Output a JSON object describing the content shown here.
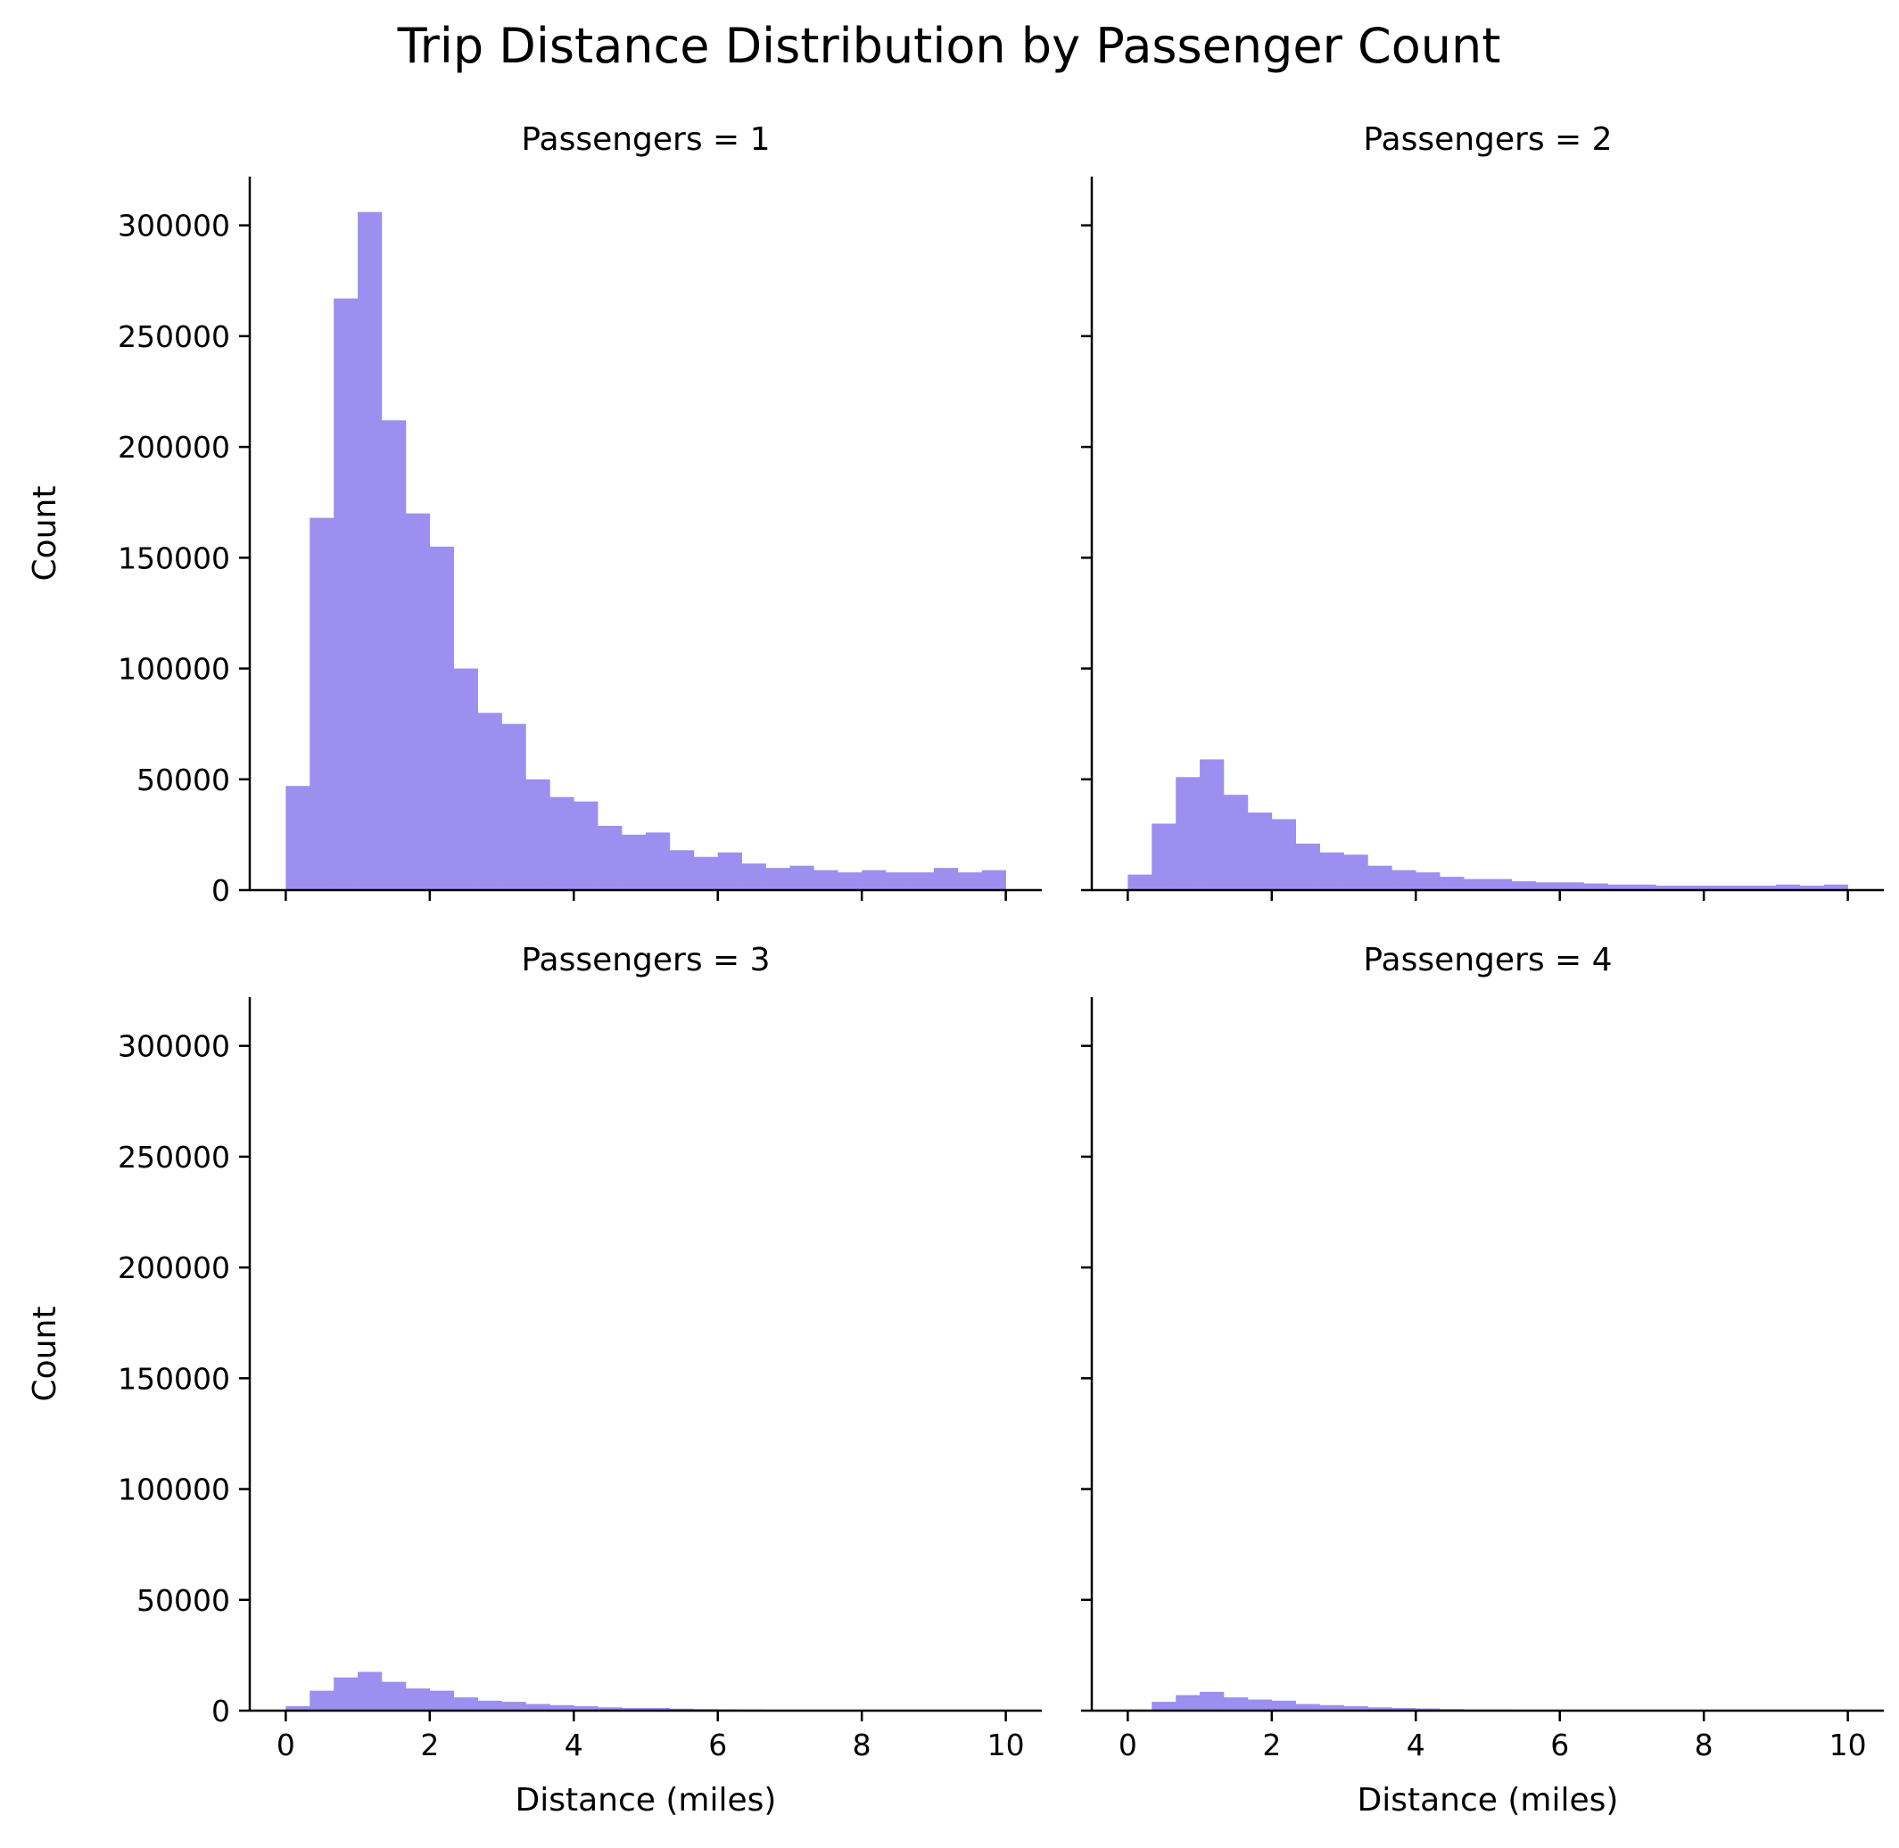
{
  "title": "Trip Distance Distribution by Passenger Count",
  "colors": {
    "title": "#00008B",
    "bar": "#9C8FF0",
    "axis": "#000000",
    "background": "#FFFFFF"
  },
  "chart_data": {
    "type": "bar",
    "subtype": "histogram",
    "layout": "2x2 facet grid, shared x and y axes",
    "grid": false,
    "title": "Trip Distance Distribution by Passenger Count",
    "xlabel": "Distance (miles)",
    "ylabel": "Count",
    "xlim": [
      -0.5,
      10.5
    ],
    "ylim": [
      0,
      322000
    ],
    "xticks": [
      0,
      2,
      4,
      6,
      8,
      10
    ],
    "yticks": [
      0,
      50000,
      100000,
      150000,
      200000,
      250000,
      300000
    ],
    "bin_edges": [
      0,
      0.333,
      0.667,
      1,
      1.333,
      1.667,
      2,
      2.333,
      2.667,
      3,
      3.333,
      3.667,
      4,
      4.333,
      4.667,
      5,
      5.333,
      5.667,
      6,
      6.333,
      6.667,
      7,
      7.333,
      7.667,
      8,
      8.333,
      8.667,
      9,
      9.333,
      9.667,
      10
    ],
    "panels": [
      {
        "label": "Passengers = 1",
        "values": [
          47000,
          168000,
          267000,
          306000,
          212000,
          170000,
          155000,
          100000,
          80000,
          75000,
          50000,
          42000,
          40000,
          29000,
          25000,
          26000,
          18000,
          15000,
          17000,
          12000,
          10000,
          11000,
          9000,
          8000,
          9000,
          8000,
          8000,
          10000,
          8000,
          9000
        ]
      },
      {
        "label": "Passengers = 2",
        "values": [
          7000,
          30000,
          51000,
          59000,
          43000,
          35000,
          32000,
          21000,
          17000,
          16000,
          11000,
          9000,
          8000,
          6000,
          5000,
          5000,
          4000,
          3500,
          3500,
          3000,
          2500,
          2500,
          2000,
          2000,
          2000,
          2000,
          2000,
          2500,
          2000,
          2500
        ]
      },
      {
        "label": "Passengers = 3",
        "values": [
          2000,
          9000,
          15000,
          17500,
          13000,
          10000,
          9000,
          6000,
          4500,
          4000,
          3000,
          2500,
          2000,
          1500,
          1200,
          1200,
          900,
          700,
          600,
          500,
          400,
          300,
          0,
          0,
          0,
          0,
          0,
          0,
          0,
          0
        ]
      },
      {
        "label": "Passengers = 4",
        "values": [
          500,
          4000,
          7000,
          8500,
          6000,
          5000,
          4500,
          3000,
          2500,
          2000,
          1500,
          1200,
          1000,
          700,
          500,
          500,
          300,
          0,
          0,
          0,
          0,
          0,
          0,
          0,
          0,
          0,
          0,
          0,
          0,
          0
        ]
      }
    ]
  }
}
